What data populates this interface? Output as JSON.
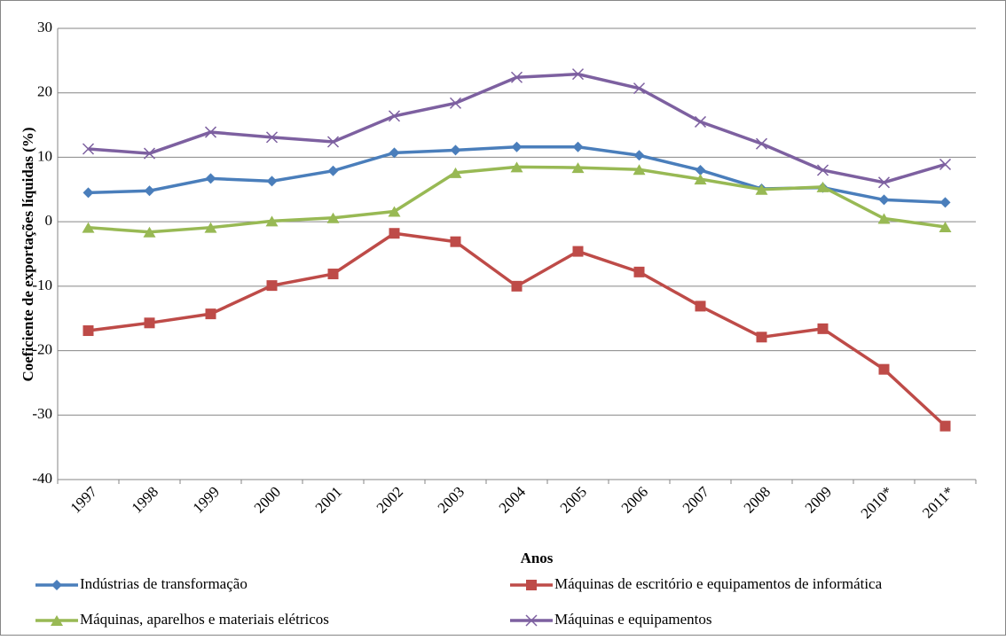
{
  "chart_data": {
    "type": "line",
    "x_label": "Anos",
    "y_label": "Coeficiente de exportações líquidas (%)",
    "categories": [
      "1997",
      "1998",
      "1999",
      "2000",
      "2001",
      "2002",
      "2003",
      "2004",
      "2005",
      "2006",
      "2007",
      "2008",
      "2009",
      "2010*",
      "2011*"
    ],
    "series": [
      {
        "name": "Indústrias de transformação",
        "color": "#4a7ebb",
        "marker": "diamond",
        "values": [
          4.5,
          4.8,
          6.7,
          6.3,
          7.9,
          10.7,
          11.1,
          11.6,
          11.6,
          10.3,
          8.0,
          5.1,
          5.3,
          3.4,
          3.0
        ]
      },
      {
        "name": "Máquinas de escritório e equipamentos de informática",
        "color": "#be4b48",
        "marker": "square",
        "values": [
          -16.9,
          -15.7,
          -14.3,
          -9.9,
          -8.1,
          -1.8,
          -3.1,
          -10.0,
          -4.6,
          -7.8,
          -13.1,
          -17.9,
          -16.6,
          -22.9,
          -31.7
        ]
      },
      {
        "name": "Máquinas, aparelhos e materiais elétricos",
        "color": "#98b954",
        "marker": "triangle",
        "values": [
          -0.9,
          -1.6,
          -0.9,
          0.1,
          0.6,
          1.6,
          7.6,
          8.5,
          8.4,
          8.1,
          6.6,
          5.0,
          5.4,
          0.5,
          -0.8
        ]
      },
      {
        "name": "Máquinas e equipamentos",
        "color": "#7d60a0",
        "marker": "x",
        "values": [
          11.3,
          10.6,
          13.9,
          13.1,
          12.4,
          16.4,
          18.4,
          22.4,
          22.9,
          20.7,
          15.5,
          12.1,
          8.0,
          6.1,
          8.9
        ]
      }
    ],
    "ylim": [
      -40,
      30
    ],
    "yticks": [
      -40,
      -30,
      -20,
      -10,
      0,
      10,
      20,
      30
    ],
    "grid": true
  }
}
